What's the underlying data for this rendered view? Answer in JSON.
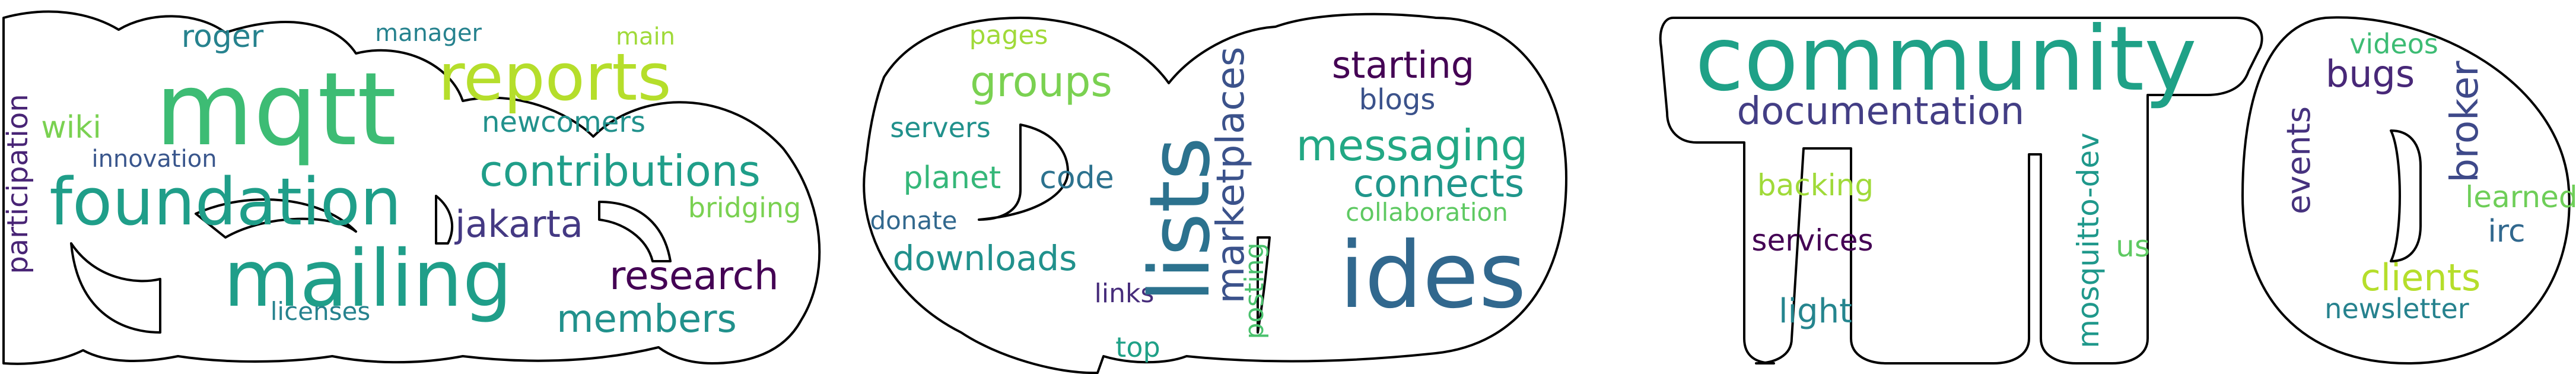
{
  "words": [
    {
      "id": "mqtt",
      "text": "mqtt",
      "color": "#3dbc74"
    },
    {
      "id": "foundation",
      "text": "foundation",
      "color": "#1f9e89"
    },
    {
      "id": "mailing",
      "text": "mailing",
      "color": "#1f9e89"
    },
    {
      "id": "reports",
      "text": "reports",
      "color": "#b5de2b"
    },
    {
      "id": "contributions",
      "text": "contributions",
      "color": "#1f9e89"
    },
    {
      "id": "newcomers",
      "text": "newcomers",
      "color": "#21918c"
    },
    {
      "id": "jakarta",
      "text": "jakarta",
      "color": "#443983"
    },
    {
      "id": "bridging",
      "text": "bridging",
      "color": "#7ad151"
    },
    {
      "id": "research",
      "text": "research",
      "color": "#440154"
    },
    {
      "id": "members",
      "text": "members",
      "color": "#21918c"
    },
    {
      "id": "licenses",
      "text": "licenses",
      "color": "#26828e"
    },
    {
      "id": "roger",
      "text": "roger",
      "color": "#26828e"
    },
    {
      "id": "manager",
      "text": "manager",
      "color": "#26828e"
    },
    {
      "id": "main",
      "text": "main",
      "color": "#a0da39"
    },
    {
      "id": "wiki",
      "text": "wiki",
      "color": "#7ad151"
    },
    {
      "id": "innovation",
      "text": "innovation",
      "color": "#39568c"
    },
    {
      "id": "participation",
      "text": "participation",
      "color": "#482475"
    },
    {
      "id": "pages",
      "text": "pages",
      "color": "#a0da39"
    },
    {
      "id": "groups",
      "text": "groups",
      "color": "#7ad151"
    },
    {
      "id": "servers",
      "text": "servers",
      "color": "#21918c"
    },
    {
      "id": "planet",
      "text": "planet",
      "color": "#35b779"
    },
    {
      "id": "code",
      "text": "code",
      "color": "#2c728e"
    },
    {
      "id": "donate",
      "text": "donate",
      "color": "#31688e"
    },
    {
      "id": "downloads",
      "text": "downloads",
      "color": "#21918c"
    },
    {
      "id": "links",
      "text": "links",
      "color": "#472d7b"
    },
    {
      "id": "top",
      "text": "top",
      "color": "#1fa187"
    },
    {
      "id": "lists",
      "text": "lists",
      "color": "#2c728e"
    },
    {
      "id": "marketplaces",
      "text": "marketplaces",
      "color": "#3b528b"
    },
    {
      "id": "posting",
      "text": "posting",
      "color": "#4ac16d"
    },
    {
      "id": "starting",
      "text": "starting",
      "color": "#440154"
    },
    {
      "id": "blogs",
      "text": "blogs",
      "color": "#3b528b"
    },
    {
      "id": "messaging",
      "text": "messaging",
      "color": "#22a884"
    },
    {
      "id": "connects",
      "text": "connects",
      "color": "#1f968b"
    },
    {
      "id": "collaboration",
      "text": "collaboration",
      "color": "#5ec962"
    },
    {
      "id": "ides",
      "text": "ides",
      "color": "#31688e"
    },
    {
      "id": "community",
      "text": "community",
      "color": "#1fa187"
    },
    {
      "id": "documentation",
      "text": "documentation",
      "color": "#433e85"
    },
    {
      "id": "backing",
      "text": "backing",
      "color": "#a0da39"
    },
    {
      "id": "services",
      "text": "services",
      "color": "#440154"
    },
    {
      "id": "light",
      "text": "light",
      "color": "#25858e"
    },
    {
      "id": "mosquitto-dev",
      "text": "mosquitto-dev",
      "color": "#1f988b"
    },
    {
      "id": "us",
      "text": "us",
      "color": "#5ec962"
    },
    {
      "id": "videos",
      "text": "videos",
      "color": "#3dbc74"
    },
    {
      "id": "bugs",
      "text": "bugs",
      "color": "#482878"
    },
    {
      "id": "broker",
      "text": "broker",
      "color": "#3e4989"
    },
    {
      "id": "events",
      "text": "events",
      "color": "#46327e"
    },
    {
      "id": "learned",
      "text": "learned",
      "color": "#6ece58"
    },
    {
      "id": "irc",
      "text": "irc",
      "color": "#31688e"
    },
    {
      "id": "clients",
      "text": "clients",
      "color": "#b5de2b"
    },
    {
      "id": "newsletter",
      "text": "newsletter",
      "color": "#26828e"
    }
  ]
}
